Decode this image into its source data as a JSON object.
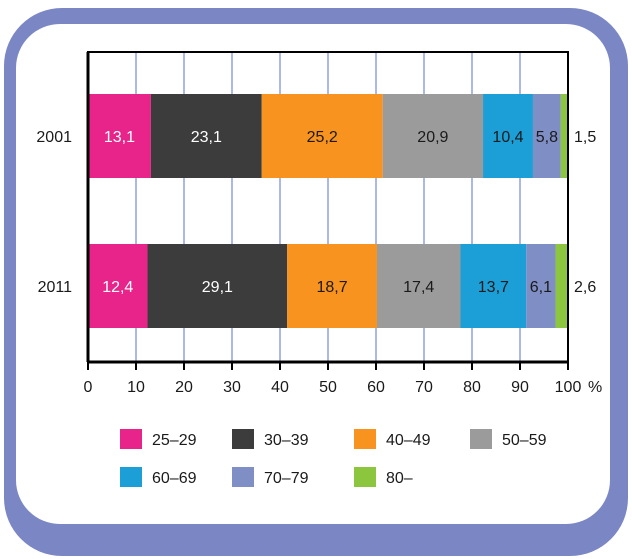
{
  "colors": {
    "page_bg": "#ffffff",
    "frame_blue": "#7a87c4",
    "frame_white": "#ffffff",
    "grid": "#5a6fd6",
    "axis": "#000000"
  },
  "chart_data": {
    "type": "bar",
    "orientation": "horizontal",
    "stacked": true,
    "categories": [
      "2001",
      "2011"
    ],
    "xlim": [
      0,
      100
    ],
    "x_ticks": [
      "0",
      "10",
      "20",
      "30",
      "40",
      "50",
      "60",
      "70",
      "80",
      "90",
      "100"
    ],
    "x_unit": "%",
    "grid": true,
    "legend_position": "bottom",
    "series": [
      {
        "name": "25–29",
        "color": "#e8238a",
        "values": [
          13.1,
          12.4
        ],
        "labels": [
          "13,1",
          "12,4"
        ]
      },
      {
        "name": "30–39",
        "color": "#3c3c3c",
        "values": [
          23.1,
          29.1
        ],
        "labels": [
          "23,1",
          "29,1"
        ]
      },
      {
        "name": "40–49",
        "color": "#f7931e",
        "values": [
          25.2,
          18.7
        ],
        "labels": [
          "25,2",
          "18,7"
        ]
      },
      {
        "name": "50–59",
        "color": "#9b9b9b",
        "values": [
          20.9,
          17.4
        ],
        "labels": [
          "20,9",
          "17,4"
        ]
      },
      {
        "name": "60–69",
        "color": "#1c9fd6",
        "values": [
          10.4,
          13.7
        ],
        "labels": [
          "10,4",
          "13,7"
        ]
      },
      {
        "name": "70–79",
        "color": "#7f8fc6",
        "values": [
          5.8,
          6.1
        ],
        "labels": [
          "5,8",
          "6,1"
        ]
      },
      {
        "name": "80–",
        "color": "#8cc63f",
        "values": [
          1.5,
          2.6
        ],
        "labels": [
          "1,5",
          "2,6"
        ]
      }
    ]
  }
}
